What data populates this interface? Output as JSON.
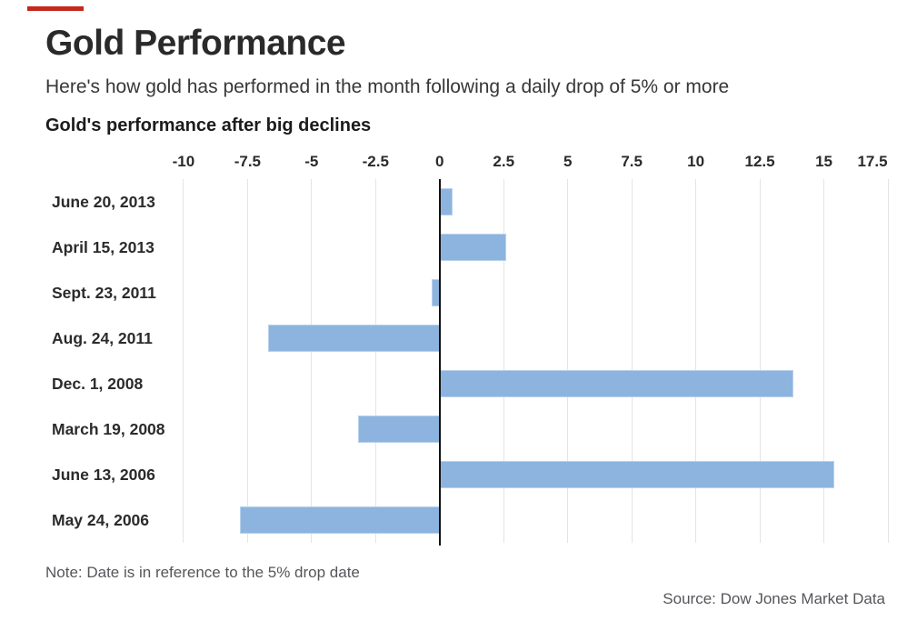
{
  "accent_color": "#c5281c",
  "header": {
    "title": "Gold Performance",
    "subtitle": "Here's how gold has performed in the month following a daily drop of 5% or more"
  },
  "chart_data": {
    "type": "bar",
    "orientation": "horizontal",
    "title": "Gold's performance after big declines",
    "categories": [
      "June 20, 2013",
      "April 15, 2013",
      "Sept. 23, 2011",
      "Aug. 24, 2011",
      "Dec. 1, 2008",
      "March 19, 2008",
      "June 13, 2006",
      "May 24, 2006"
    ],
    "values": [
      0.5,
      2.6,
      -0.3,
      -6.7,
      13.8,
      -3.2,
      15.4,
      -7.8
    ],
    "x_ticks": [
      -10,
      -7.5,
      -5,
      -2.5,
      0,
      2.5,
      5,
      7.5,
      10,
      12.5,
      15,
      17.5
    ],
    "xlim": [
      -10.6,
      17.5
    ],
    "xlabel": "",
    "ylabel": "",
    "grid": "vertical",
    "legend": "none",
    "bar_color": "#8cb4df",
    "gridline_color": "#e4e4e4",
    "zero_axis_color": "#121212"
  },
  "footer": {
    "note": "Note: Date is in reference to the 5% drop date",
    "source": "Source: Dow Jones Market Data"
  }
}
